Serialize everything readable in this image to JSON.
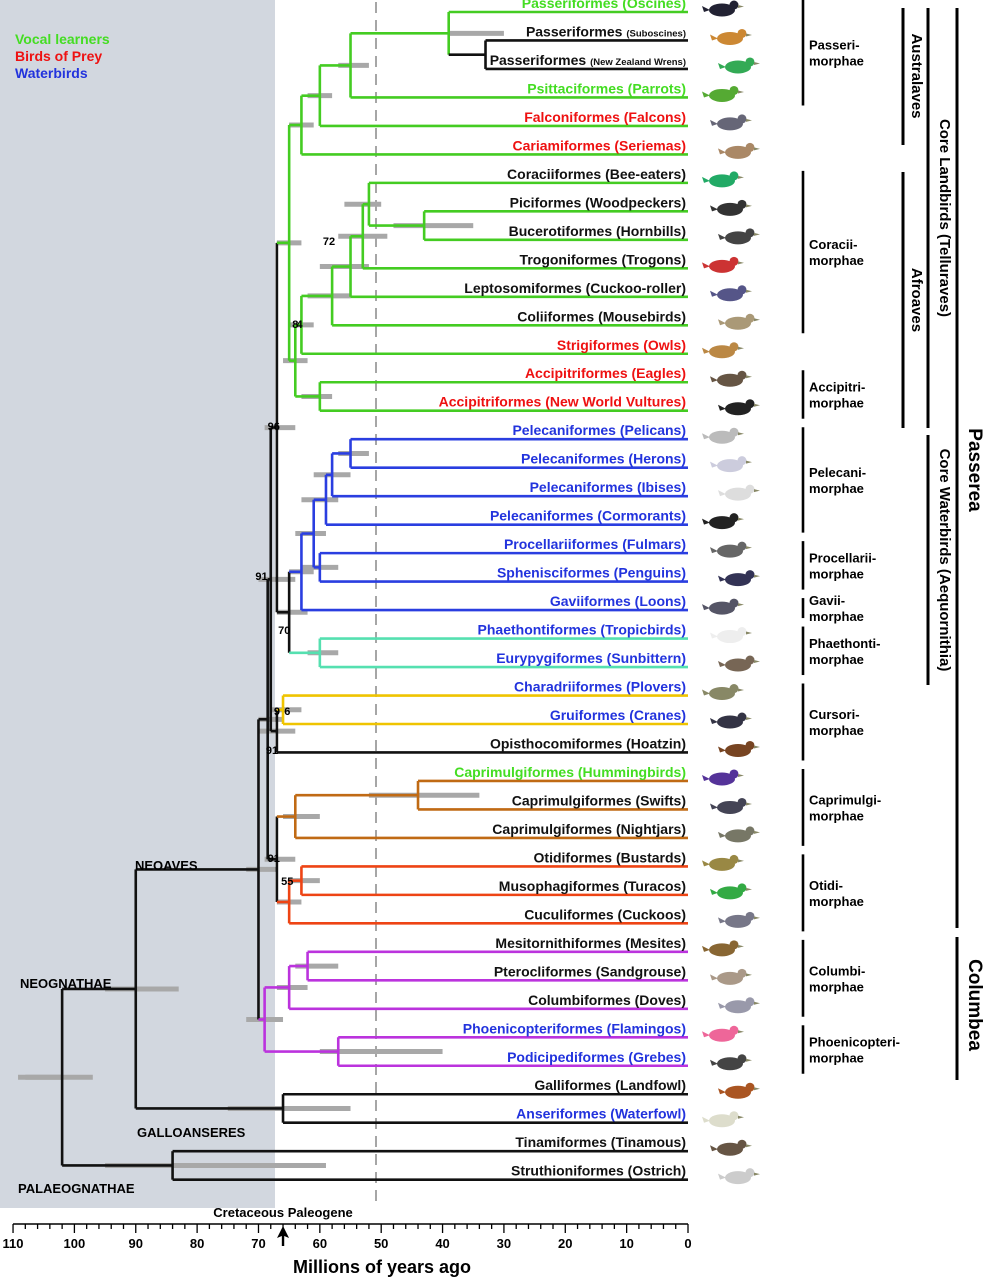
{
  "legend": [
    {
      "text": "Vocal learners",
      "color": "#44dd22"
    },
    {
      "text": "Birds of Prey",
      "color": "#ee1111"
    },
    {
      "text": "Waterbirds",
      "color": "#2233dd"
    }
  ],
  "colors": {
    "black": "#111111",
    "green": "#44cc22",
    "blue": "#2a3ee0",
    "teal": "#55e0b0",
    "yellow": "#efc400",
    "brown": "#c06a14",
    "orange": "#ee4414",
    "purple": "#bb33dd",
    "ci": "#a8a8a8",
    "shade": "#d2d7df",
    "green_text": "#44dd22",
    "red_text": "#ee1111",
    "blue_text": "#2233dd"
  },
  "taxa": [
    {
      "name": "Passeriformes (Oscines)",
      "color": "green_text"
    },
    {
      "name": "Passeriformes",
      "suffix": "(Suboscines)",
      "color": "black"
    },
    {
      "name": "Passeriformes",
      "suffix": "(New Zealand Wrens)",
      "color": "black"
    },
    {
      "name": "Psittaciformes (Parrots)",
      "color": "green_text"
    },
    {
      "name": "Falconiformes (Falcons)",
      "color": "red_text"
    },
    {
      "name": "Cariamiformes (Seriemas)",
      "color": "red_text"
    },
    {
      "name": "Coraciiformes (Bee-eaters)",
      "color": "black"
    },
    {
      "name": "Piciformes (Woodpeckers)",
      "color": "black"
    },
    {
      "name": "Bucerotiformes (Hornbills)",
      "color": "black"
    },
    {
      "name": "Trogoniformes (Trogons)",
      "color": "black"
    },
    {
      "name": "Leptosomiformes (Cuckoo-roller)",
      "color": "black"
    },
    {
      "name": "Coliiformes (Mousebirds)",
      "color": "black"
    },
    {
      "name": "Strigiformes (Owls)",
      "color": "red_text"
    },
    {
      "name": "Accipitriformes (Eagles)",
      "color": "red_text"
    },
    {
      "name": "Accipitriformes (New World Vultures)",
      "color": "red_text"
    },
    {
      "name": "Pelecaniformes (Pelicans)",
      "color": "blue_text"
    },
    {
      "name": "Pelecaniformes (Herons)",
      "color": "blue_text"
    },
    {
      "name": "Pelecaniformes (Ibises)",
      "color": "blue_text"
    },
    {
      "name": "Pelecaniformes (Cormorants)",
      "color": "blue_text"
    },
    {
      "name": "Procellariiformes (Fulmars)",
      "color": "blue_text"
    },
    {
      "name": "Sphenisciformes (Penguins)",
      "color": "blue_text"
    },
    {
      "name": "Gaviiformes (Loons)",
      "color": "blue_text"
    },
    {
      "name": "Phaethontiformes (Tropicbirds)",
      "color": "blue_text"
    },
    {
      "name": "Eurypygiformes (Sunbittern)",
      "color": "blue_text"
    },
    {
      "name": "Charadriiformes (Plovers)",
      "color": "blue_text"
    },
    {
      "name": "Gruiformes (Cranes)",
      "color": "blue_text"
    },
    {
      "name": "Opisthocomiformes (Hoatzin)",
      "color": "black"
    },
    {
      "name": "Caprimulgiformes (Hummingbirds)",
      "color": "green_text"
    },
    {
      "name": "Caprimulgiformes (Swifts)",
      "color": "black"
    },
    {
      "name": "Caprimulgiformes (Nightjars)",
      "color": "black"
    },
    {
      "name": "Otidiformes (Bustards)",
      "color": "black"
    },
    {
      "name": "Musophagiformes (Turacos)",
      "color": "black"
    },
    {
      "name": "Cuculiformes (Cuckoos)",
      "color": "black"
    },
    {
      "name": "Mesitornithiformes (Mesites)",
      "color": "black"
    },
    {
      "name": "Pterocliformes (Sandgrouse)",
      "color": "black"
    },
    {
      "name": "Columbiformes (Doves)",
      "color": "black"
    },
    {
      "name": "Phoenicopteriformes (Flamingos)",
      "color": "blue_text"
    },
    {
      "name": "Podicipediformes (Grebes)",
      "color": "blue_text"
    },
    {
      "name": "Galliformes (Landfowl)",
      "color": "black"
    },
    {
      "name": "Anseriformes (Waterfowl)",
      "color": "blue_text"
    },
    {
      "name": "Tinamiformes (Tinamous)",
      "color": "black"
    },
    {
      "name": "Struthioniformes (Ostrich)",
      "color": "black"
    }
  ],
  "support_values": [
    "72",
    "8",
    "4",
    "96",
    "91",
    "7",
    "0",
    "9",
    "6",
    "9",
    "1",
    "91",
    "55"
  ],
  "clades": {
    "neoaves": "NEOAVES",
    "neognathae": "NEOGNATHAE",
    "galloanseres": "GALLOANSERES",
    "palaeognathae": "PALAEOGNATHAE"
  },
  "groups": [
    {
      "line1": "Passeri-",
      "line2": "morphae"
    },
    {
      "line1": "Coracii-",
      "line2": "morphae"
    },
    {
      "line1": "Accipitri-",
      "line2": "morphae"
    },
    {
      "line1": "Pelecani-",
      "line2": "morphae"
    },
    {
      "line1": "Procellarii-",
      "line2": "morphae"
    },
    {
      "line1": "Gavii-",
      "line2": "morphae"
    },
    {
      "line1": "Phaethonti-",
      "line2": "morphae"
    },
    {
      "line1": "Cursori-",
      "line2": "morphae"
    },
    {
      "line1": "Caprimulgi-",
      "line2": "morphae"
    },
    {
      "line1": "Otidi-",
      "line2": "morphae"
    },
    {
      "line1": "Columbi-",
      "line2": "morphae"
    },
    {
      "line1": "Phoenicopteri-",
      "line2": "morphae"
    }
  ],
  "supergroups": {
    "australaves": "Australaves",
    "afroaves": "Afroaves",
    "core_landbirds": "Core Landbirds (Telluraves)",
    "core_waterbirds": "Core Waterbirds (Aequornithia)",
    "passerea": "Passerea",
    "columbea": "Columbea"
  },
  "axis": {
    "title": "Millions of years ago",
    "ticks": [
      "110",
      "100",
      "90",
      "80",
      "70",
      "60",
      "50",
      "40",
      "30",
      "20",
      "10",
      "0"
    ],
    "period_labels": "Cretaceous Paleogene",
    "kpg_boundary_ma": 66,
    "dashed_line_ma": 50,
    "range_ma": [
      110,
      0
    ]
  }
}
